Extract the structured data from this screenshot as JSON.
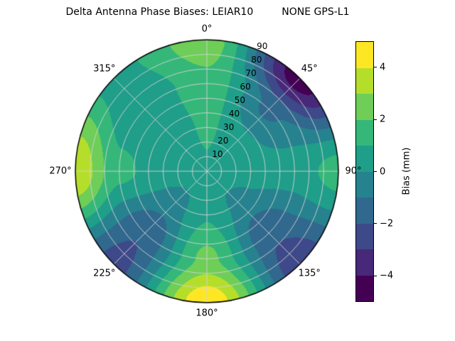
{
  "title": "Delta Antenna Phase Biases: LEIAR10         NONE GPS-L1",
  "chart_data": {
    "type": "heatmap",
    "subtype": "polar_filled_contour",
    "title": "Delta Antenna Phase Biases: LEIAR10         NONE GPS-L1",
    "antenna": "LEIAR10         NONE",
    "signal": "GPS-L1",
    "azimuth_ticks": [
      {
        "angle_deg": 0,
        "label": "0°"
      },
      {
        "angle_deg": 45,
        "label": "45°"
      },
      {
        "angle_deg": 90,
        "label": "90°"
      },
      {
        "angle_deg": 135,
        "label": "135°"
      },
      {
        "angle_deg": 180,
        "label": "180°"
      },
      {
        "angle_deg": 225,
        "label": "225°"
      },
      {
        "angle_deg": 270,
        "label": "270°"
      },
      {
        "angle_deg": 315,
        "label": "315°"
      }
    ],
    "radial_ticks": [
      10,
      20,
      30,
      40,
      50,
      60,
      70,
      80,
      90
    ],
    "radial_label_angle_deg": 22.5,
    "levels_mm": [
      -5,
      -4,
      -3,
      -2,
      -1,
      0,
      1,
      2,
      3,
      4,
      5
    ],
    "band_colors": [
      "#440154",
      "#482878",
      "#3e4989",
      "#31688e",
      "#26828e",
      "#1f9e89",
      "#35b779",
      "#6ece58",
      "#b5de2b",
      "#fde725"
    ],
    "grid": {
      "azimuths_deg": [
        0,
        45,
        90,
        135,
        180,
        225,
        270,
        315,
        360
      ],
      "zeniths_deg": [
        0,
        30,
        60,
        90
      ],
      "bias_mm": [
        [
          0.8,
          0.8,
          0.8,
          0.8,
          0.8,
          0.8,
          0.8,
          0.8,
          0.8
        ],
        [
          1.2,
          0.3,
          0.3,
          -0.3,
          0.9,
          -0.4,
          0.4,
          0.4,
          1.2
        ],
        [
          1.7,
          -1.2,
          0.5,
          -1.8,
          2.3,
          -1.9,
          1.3,
          0.1,
          1.7
        ],
        [
          2.6,
          -4.6,
          1.4,
          -2.7,
          4.8,
          -2.4,
          3.9,
          0.6,
          2.6
        ]
      ]
    },
    "colorbar": {
      "label": "Bias (mm)",
      "vmin": -5,
      "vmax": 5,
      "ticks": [
        {
          "value": 4,
          "label": "4"
        },
        {
          "value": 2,
          "label": "2"
        },
        {
          "value": 0,
          "label": "0"
        },
        {
          "value": -2,
          "label": "−2"
        },
        {
          "value": -4,
          "label": "−4"
        }
      ]
    }
  }
}
